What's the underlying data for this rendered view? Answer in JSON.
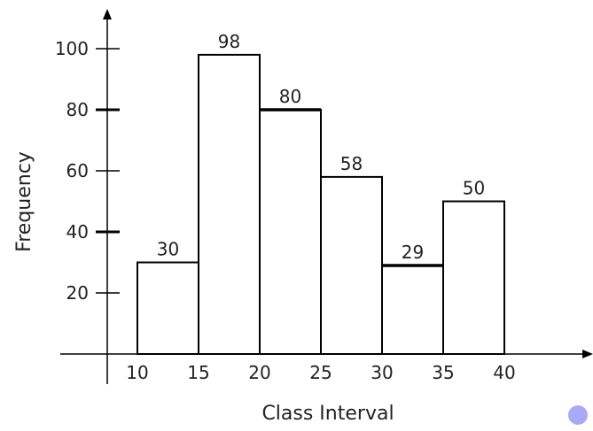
{
  "chart_data": {
    "type": "bar",
    "categories": [
      "10-15",
      "15-20",
      "20-25",
      "25-30",
      "30-35",
      "35-40"
    ],
    "bin_edges": [
      10,
      15,
      20,
      25,
      30,
      35,
      40
    ],
    "values": [
      30,
      98,
      80,
      58,
      29,
      50
    ],
    "data_labels": [
      "30",
      "98",
      "80",
      "58",
      "29",
      "50"
    ],
    "x_tick_labels": [
      "10",
      "15",
      "20",
      "25",
      "30",
      "35",
      "40"
    ],
    "y_tick_labels": [
      "20",
      "40",
      "60",
      "80",
      "100"
    ],
    "y_ticks": [
      20,
      40,
      60,
      80,
      100
    ],
    "xlabel": "Class Interval",
    "ylabel": "Frequency",
    "ylim": [
      0,
      100
    ],
    "grid": false,
    "legend": "none",
    "colors": {
      "bar_fill": "#ffffff",
      "bar_stroke": "#000000",
      "axis": "#000000",
      "accent_dot": "#a9a9f4"
    }
  },
  "decor": {
    "dot_icon": "circle-dot-icon"
  }
}
